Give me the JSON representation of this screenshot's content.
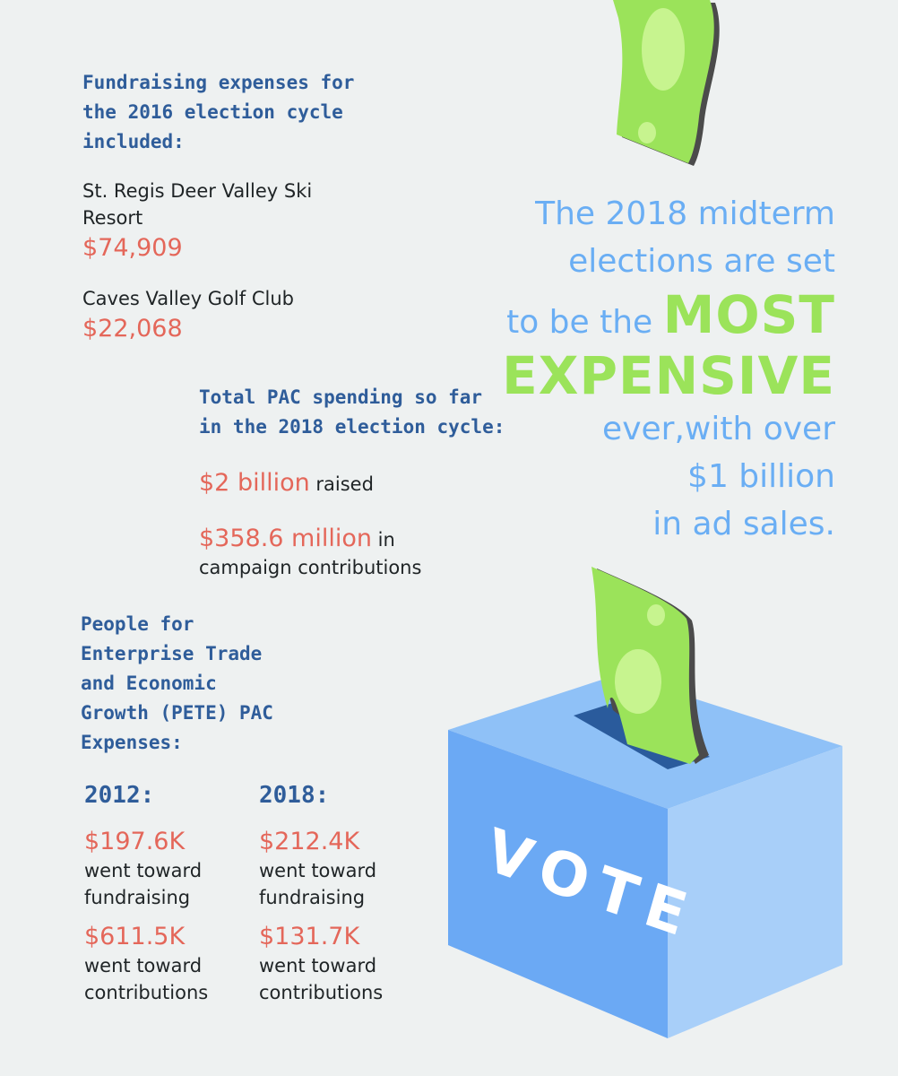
{
  "fundraising_2016": {
    "heading": "Fundraising expenses for\nthe 2016 election cycle\nincluded:",
    "items": [
      {
        "label": "St. Regis Deer Valley Ski\nResort",
        "amount": "$74,909"
      },
      {
        "label": "Caves Valley Golf Club",
        "amount": "$22,068"
      }
    ]
  },
  "pac_2018": {
    "heading": "Total PAC spending so far\nin the 2018 election cycle:",
    "raised": {
      "amount": "$2 billion",
      "suffix": " raised"
    },
    "contributions": {
      "amount": "$358.6 million",
      "suffix": " in",
      "line2": "campaign contributions"
    }
  },
  "pete": {
    "heading": "People for\nEnterprise Trade\nand Economic\nGrowth (PETE) PAC\nExpenses:",
    "years": [
      {
        "year": "2012:",
        "fundraising_amount": "$197.6K",
        "fundraising_label": "went toward\nfundraising",
        "contributions_amount": "$611.5K",
        "contributions_label": "went toward\ncontributions"
      },
      {
        "year": "2018:",
        "fundraising_amount": "$212.4K",
        "fundraising_label": "went toward\nfundraising",
        "contributions_amount": "$131.7K",
        "contributions_label": "went toward\ncontributions"
      }
    ]
  },
  "callout": {
    "line1": "The 2018 midterm",
    "line2": "elections are set",
    "line3_prefix": "to be the ",
    "emphasis1": "MOST",
    "emphasis2": "EXPENSIVE",
    "line4": "ever,with over",
    "line5": "$1 billion",
    "line6": "in ad sales."
  },
  "ballot_box": {
    "label": "VOTE"
  },
  "colors": {
    "background": "#eef1f1",
    "heading_blue": "#2f5d9a",
    "amount_red": "#e4675a",
    "callout_blue": "#6aaef4",
    "money_green": "#9be35a",
    "box_blue": "#7db6f5"
  }
}
